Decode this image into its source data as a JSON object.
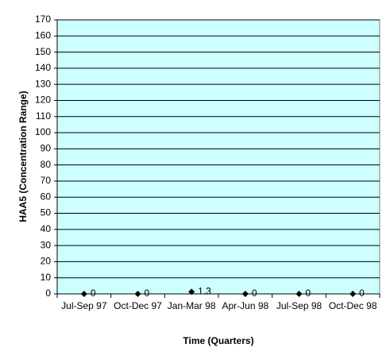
{
  "chart_data": {
    "type": "line",
    "x_label": "Time (Quarters)",
    "y_label": "HAA5 (Concentration Range)",
    "categories": [
      "Jul-Sep 97",
      "Oct-Dec 97",
      "Jan-Mar 98",
      "Apr-Jun 98",
      "Jul-Sep 98",
      "Oct-Dec 98"
    ],
    "series": [
      {
        "color": "#000000",
        "values": [
          0,
          0,
          1.3,
          0,
          0,
          0
        ]
      }
    ],
    "ylim": [
      0,
      170
    ],
    "yticks": [
      0,
      10,
      20,
      30,
      40,
      50,
      60,
      70,
      80,
      90,
      100,
      110,
      120,
      130,
      140,
      150,
      160,
      170
    ],
    "grid": true,
    "plot_background": "#ccffff"
  }
}
